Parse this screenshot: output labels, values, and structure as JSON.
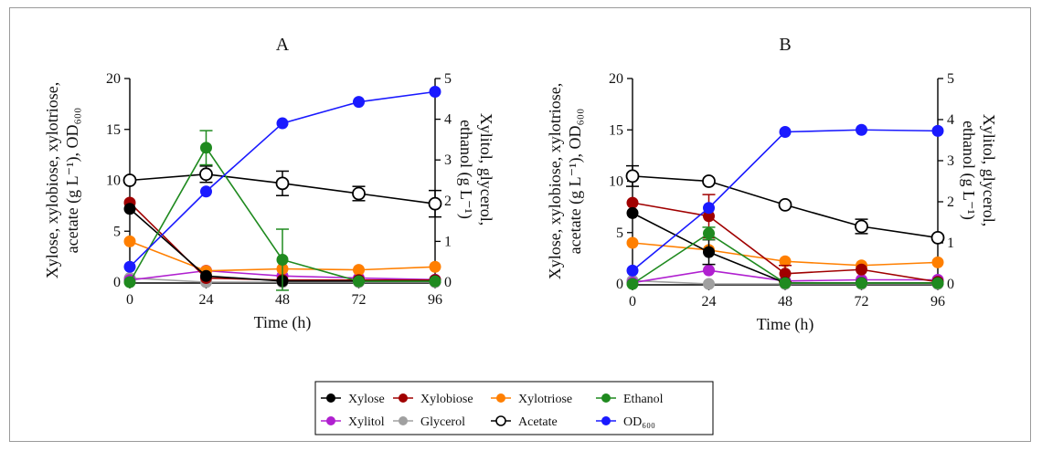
{
  "chart_data": [
    {
      "type": "line",
      "title": "A",
      "xlabel": "Time (h)",
      "ylabel_left": "Xylose, xylobiose, xylotriose,",
      "ylabel_left_line2": "acetate (g L⁻¹), OD₆₀₀",
      "ylabel_right": "Xylitol, glycerol,",
      "ylabel_right_line2": "ethanol (g L⁻¹)",
      "x_ticks": [
        "0",
        "24",
        "48",
        "72",
        "96"
      ],
      "y_left_ticks": [
        "0",
        "5",
        "10",
        "15",
        "20"
      ],
      "y_right_ticks": [
        "0",
        "1",
        "2",
        "3",
        "4",
        "5"
      ],
      "xlim": [
        0,
        96
      ],
      "ylim_left": [
        0,
        20
      ],
      "ylim_right": [
        0,
        5
      ],
      "x": [
        0,
        24,
        48,
        72,
        96
      ],
      "series": [
        {
          "name": "Xylose",
          "axis": "left",
          "values": [
            7.2,
            0.6,
            0.1,
            0.1,
            0.1
          ]
        },
        {
          "name": "Xylobiose",
          "axis": "left",
          "values": [
            7.8,
            0.4,
            0.2,
            0.2,
            0.2
          ]
        },
        {
          "name": "Xylotriose",
          "axis": "left",
          "values": [
            4.0,
            1.1,
            1.3,
            1.2,
            1.5
          ]
        },
        {
          "name": "Ethanol",
          "axis": "right",
          "values": [
            0.0,
            3.3,
            0.55,
            0.02,
            0.02
          ],
          "err": [
            0,
            0.42,
            0.75,
            0,
            0
          ]
        },
        {
          "name": "Xylitol",
          "axis": "right",
          "values": [
            0.05,
            0.28,
            0.15,
            0.1,
            0.06
          ]
        },
        {
          "name": "Glycerol",
          "axis": "right",
          "values": [
            0.1,
            0.0,
            0.0,
            0.0,
            0.0
          ]
        },
        {
          "name": "Acetate",
          "axis": "left",
          "values": [
            10.0,
            10.6,
            9.7,
            8.7,
            7.7
          ],
          "err": [
            0,
            0.8,
            1.2,
            0.7,
            1.3
          ]
        },
        {
          "name": "OD₆₀₀",
          "axis": "left",
          "values": [
            1.5,
            8.9,
            15.6,
            17.7,
            18.7
          ]
        }
      ]
    },
    {
      "type": "line",
      "title": "B",
      "xlabel": "Time (h)",
      "ylabel_left": "Xylose, xylobiose, xylotriose,",
      "ylabel_left_line2": "acetate (g L⁻¹), OD₆₀₀",
      "ylabel_right": "Xylitol, glycerol,",
      "ylabel_right_line2": "ethanol (g L⁻¹)",
      "x_ticks": [
        "0",
        "24",
        "48",
        "72",
        "96"
      ],
      "y_left_ticks": [
        "0",
        "5",
        "10",
        "15",
        "20"
      ],
      "y_right_ticks": [
        "0",
        "1",
        "2",
        "3",
        "4",
        "5"
      ],
      "xlim": [
        0,
        96
      ],
      "ylim_left": [
        0,
        20
      ],
      "ylim_right": [
        0,
        5
      ],
      "x": [
        0,
        24,
        48,
        72,
        96
      ],
      "series": [
        {
          "name": "Xylose",
          "axis": "left",
          "values": [
            6.9,
            3.1,
            0.1,
            0.1,
            0.1
          ],
          "err": [
            0,
            1.2,
            0,
            0,
            0
          ]
        },
        {
          "name": "Xylobiose",
          "axis": "left",
          "values": [
            7.9,
            6.6,
            1.0,
            1.4,
            0.2
          ],
          "err": [
            0,
            2.1,
            0.8,
            0,
            0
          ]
        },
        {
          "name": "Xylotriose",
          "axis": "left",
          "values": [
            4.0,
            3.3,
            2.2,
            1.8,
            2.1
          ]
        },
        {
          "name": "Ethanol",
          "axis": "right",
          "values": [
            0.0,
            1.23,
            0.02,
            0.02,
            0.02
          ],
          "err": [
            0,
            0.15,
            0,
            0,
            0
          ]
        },
        {
          "name": "Xylitol",
          "axis": "right",
          "values": [
            0.03,
            0.33,
            0.07,
            0.1,
            0.1
          ]
        },
        {
          "name": "Glycerol",
          "axis": "right",
          "values": [
            0.08,
            0.0,
            0.0,
            0.0,
            0.0
          ]
        },
        {
          "name": "Acetate",
          "axis": "left",
          "values": [
            10.5,
            10.0,
            7.7,
            5.6,
            4.5
          ],
          "err": [
            1.0,
            0,
            0,
            0.7,
            0
          ]
        },
        {
          "name": "OD₆₀₀",
          "axis": "left",
          "values": [
            1.3,
            7.4,
            14.8,
            15.0,
            14.9
          ]
        }
      ]
    }
  ],
  "legend": {
    "placement": "bottom-center",
    "items": [
      {
        "label": "Xylose",
        "color": "#000000",
        "marker": "filled"
      },
      {
        "label": "Xylobiose",
        "color": "#a00000",
        "marker": "filled"
      },
      {
        "label": "Xylotriose",
        "color": "#ff7f00",
        "marker": "filled"
      },
      {
        "label": "Ethanol",
        "color": "#1f8a1f",
        "marker": "filled"
      },
      {
        "label": "Xylitol",
        "color": "#b020d0",
        "marker": "filled"
      },
      {
        "label": "Glycerol",
        "color": "#a0a0a0",
        "marker": "filled"
      },
      {
        "label": "Acetate",
        "color": "#000000",
        "marker": "open"
      },
      {
        "label": "OD₆₀₀",
        "color": "#1a1aff",
        "marker": "filled"
      }
    ]
  },
  "colors": {
    "Xylose": "#000000",
    "Xylobiose": "#a00000",
    "Xylotriose": "#ff7f00",
    "Ethanol": "#1f8a1f",
    "Xylitol": "#b020d0",
    "Glycerol": "#a0a0a0",
    "Acetate": "#000000",
    "OD₆₀₀": "#1a1aff"
  }
}
